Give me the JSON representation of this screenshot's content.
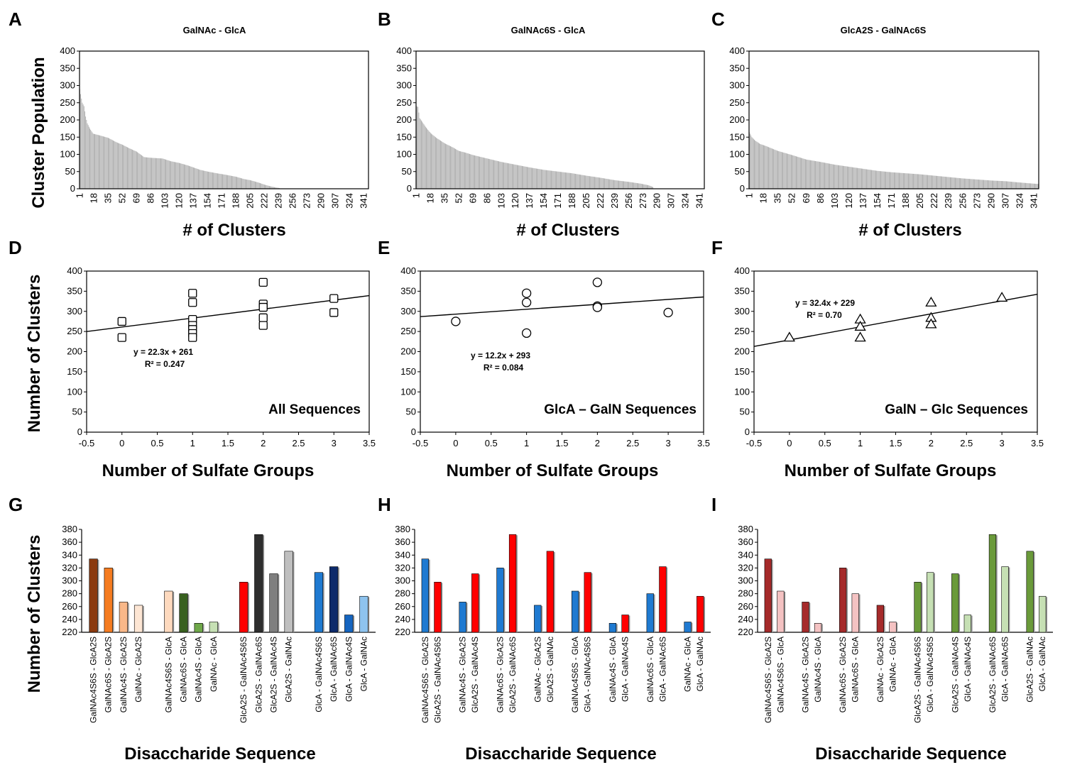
{
  "chart_data": [
    {
      "id": "A",
      "type": "bar",
      "panel_label": "A",
      "title": "GalNAc - GlcA",
      "xlabel": "# of Clusters",
      "ylabel": "Cluster Population",
      "ylim": [
        0,
        400
      ],
      "yticks": [
        0,
        50,
        100,
        150,
        200,
        250,
        300,
        350,
        400
      ],
      "n_clusters": 240,
      "xtick_labels": [
        "1",
        "18",
        "35",
        "52",
        "69",
        "86",
        "103",
        "120",
        "137",
        "154",
        "171",
        "188",
        "205",
        "222",
        "239",
        "256",
        "273",
        "290",
        "307",
        "324",
        "341"
      ],
      "profile": [
        [
          1,
          290
        ],
        [
          2,
          275
        ],
        [
          3,
          262
        ],
        [
          4,
          250
        ],
        [
          6,
          240
        ],
        [
          8,
          210
        ],
        [
          10,
          190
        ],
        [
          13,
          175
        ],
        [
          17,
          160
        ],
        [
          25,
          155
        ],
        [
          35,
          148
        ],
        [
          45,
          135
        ],
        [
          52,
          128
        ],
        [
          60,
          118
        ],
        [
          69,
          108
        ],
        [
          78,
          92
        ],
        [
          86,
          90
        ],
        [
          100,
          88
        ],
        [
          110,
          80
        ],
        [
          120,
          75
        ],
        [
          130,
          68
        ],
        [
          137,
          62
        ],
        [
          145,
          55
        ],
        [
          154,
          50
        ],
        [
          165,
          45
        ],
        [
          175,
          41
        ],
        [
          188,
          35
        ],
        [
          198,
          28
        ],
        [
          205,
          25
        ],
        [
          215,
          18
        ],
        [
          222,
          12
        ],
        [
          228,
          8
        ],
        [
          235,
          4
        ],
        [
          240,
          2
        ]
      ]
    },
    {
      "id": "B",
      "type": "bar",
      "panel_label": "B",
      "title": "GalNAc6S - GlcA",
      "xlabel": "# of Clusters",
      "ylabel": "",
      "ylim": [
        0,
        400
      ],
      "yticks": [
        0,
        50,
        100,
        150,
        200,
        250,
        300,
        350,
        400
      ],
      "n_clusters": 285,
      "xtick_labels": [
        "1",
        "18",
        "35",
        "52",
        "69",
        "86",
        "103",
        "120",
        "137",
        "154",
        "171",
        "188",
        "205",
        "222",
        "239",
        "256",
        "273",
        "290",
        "307",
        "324",
        "341"
      ],
      "profile": [
        [
          1,
          240
        ],
        [
          3,
          238
        ],
        [
          5,
          205
        ],
        [
          8,
          195
        ],
        [
          12,
          180
        ],
        [
          18,
          162
        ],
        [
          25,
          148
        ],
        [
          35,
          132
        ],
        [
          45,
          120
        ],
        [
          52,
          110
        ],
        [
          60,
          105
        ],
        [
          69,
          98
        ],
        [
          86,
          88
        ],
        [
          103,
          78
        ],
        [
          120,
          70
        ],
        [
          137,
          62
        ],
        [
          154,
          55
        ],
        [
          171,
          50
        ],
        [
          188,
          45
        ],
        [
          205,
          38
        ],
        [
          222,
          32
        ],
        [
          239,
          25
        ],
        [
          256,
          20
        ],
        [
          270,
          15
        ],
        [
          280,
          10
        ],
        [
          285,
          5
        ]
      ]
    },
    {
      "id": "C",
      "type": "bar",
      "panel_label": "C",
      "title": "GlcA2S - GalNAc6S",
      "xlabel": "# of Clusters",
      "ylabel": "",
      "ylim": [
        0,
        400
      ],
      "yticks": [
        0,
        50,
        100,
        150,
        200,
        250,
        300,
        350,
        400
      ],
      "n_clusters": 346,
      "xtick_labels": [
        "1",
        "18",
        "35",
        "52",
        "69",
        "86",
        "103",
        "120",
        "137",
        "154",
        "171",
        "188",
        "205",
        "222",
        "239",
        "256",
        "273",
        "290",
        "307",
        "324",
        "341"
      ],
      "profile": [
        [
          1,
          165
        ],
        [
          4,
          150
        ],
        [
          8,
          140
        ],
        [
          14,
          130
        ],
        [
          20,
          125
        ],
        [
          35,
          110
        ],
        [
          52,
          98
        ],
        [
          69,
          85
        ],
        [
          86,
          78
        ],
        [
          103,
          70
        ],
        [
          120,
          64
        ],
        [
          137,
          58
        ],
        [
          154,
          52
        ],
        [
          171,
          48
        ],
        [
          188,
          45
        ],
        [
          205,
          42
        ],
        [
          222,
          38
        ],
        [
          239,
          34
        ],
        [
          256,
          30
        ],
        [
          273,
          27
        ],
        [
          290,
          24
        ],
        [
          307,
          22
        ],
        [
          320,
          19
        ],
        [
          330,
          17
        ],
        [
          340,
          15
        ],
        [
          346,
          14
        ]
      ]
    },
    {
      "id": "D",
      "type": "scatter",
      "panel_label": "D",
      "xlabel": "Number of Sulfate Groups",
      "ylabel": "Number of Clusters",
      "xlim": [
        -0.5,
        3.5
      ],
      "ylim": [
        0,
        400
      ],
      "xticks": [
        "-0.5",
        "0",
        "0.5",
        "1",
        "1.5",
        "2",
        "2.5",
        "3",
        "3.5"
      ],
      "yticks": [
        0,
        50,
        100,
        150,
        200,
        250,
        300,
        350,
        400
      ],
      "marker": "square",
      "points": [
        [
          0,
          275
        ],
        [
          0,
          235
        ],
        [
          1,
          345
        ],
        [
          1,
          322
        ],
        [
          1,
          280
        ],
        [
          1,
          265
        ],
        [
          1,
          255
        ],
        [
          1,
          245
        ],
        [
          1,
          235
        ],
        [
          2,
          372
        ],
        [
          2,
          318
        ],
        [
          2,
          310
        ],
        [
          2,
          284
        ],
        [
          2,
          265
        ],
        [
          3,
          332
        ],
        [
          3,
          297
        ]
      ],
      "fit": {
        "slope": 22.3,
        "intercept": 261
      },
      "equation": "y = 22.3x + 261",
      "r2": "R² = 0.247",
      "annotation": "All Sequences"
    },
    {
      "id": "E",
      "type": "scatter",
      "panel_label": "E",
      "xlabel": "Number of Sulfate Groups",
      "ylabel": "",
      "xlim": [
        -0.5,
        3.5
      ],
      "ylim": [
        0,
        400
      ],
      "xticks": [
        "-0.5",
        "0",
        "0.5",
        "1",
        "1.5",
        "2",
        "2.5",
        "3",
        "3.5"
      ],
      "yticks": [
        0,
        50,
        100,
        150,
        200,
        250,
        300,
        350,
        400
      ],
      "marker": "circle",
      "points": [
        [
          0,
          275
        ],
        [
          1,
          345
        ],
        [
          1,
          322
        ],
        [
          1,
          246
        ],
        [
          2,
          372
        ],
        [
          2,
          313
        ],
        [
          2,
          310
        ],
        [
          3,
          297
        ]
      ],
      "fit": {
        "slope": 12.2,
        "intercept": 293
      },
      "equation": "y = 12.2x + 293",
      "r2": "R² = 0.084",
      "annotation": "GlcA – GalN Sequences"
    },
    {
      "id": "F",
      "type": "scatter",
      "panel_label": "F",
      "xlabel": "Number of Sulfate Groups",
      "ylabel": "",
      "xlim": [
        -0.5,
        3.5
      ],
      "ylim": [
        0,
        400
      ],
      "xticks": [
        "-0.5",
        "0",
        "0.5",
        "1",
        "1.5",
        "2",
        "2.5",
        "3",
        "3.5"
      ],
      "yticks": [
        0,
        50,
        100,
        150,
        200,
        250,
        300,
        350,
        400
      ],
      "marker": "triangle",
      "points": [
        [
          0,
          235
        ],
        [
          1,
          280
        ],
        [
          1,
          262
        ],
        [
          1,
          235
        ],
        [
          2,
          322
        ],
        [
          2,
          284
        ],
        [
          2,
          268
        ],
        [
          3,
          334
        ]
      ],
      "fit": {
        "slope": 32.4,
        "intercept": 229
      },
      "equation": "y = 32.4x + 229",
      "r2": "R² = 0.70",
      "annotation": "GalN – Glc Sequences"
    },
    {
      "id": "G",
      "type": "bar",
      "panel_label": "G",
      "xlabel": "Disaccharide Sequence",
      "ylabel": "Number of Clusters",
      "ylim": [
        220,
        380
      ],
      "yticks": [
        220,
        240,
        260,
        280,
        300,
        320,
        340,
        360,
        380
      ],
      "bars": [
        {
          "label": "GalNAc4S6S - GlcA2S",
          "value": 334,
          "color": "#8B3A0F",
          "slot": 0
        },
        {
          "label": "GalNAc6S - GlcA2S",
          "value": 320,
          "color": "#F57C20",
          "slot": 1
        },
        {
          "label": "GalNAc4S - GlcA2S",
          "value": 267,
          "color": "#F9B889",
          "slot": 2
        },
        {
          "label": "GalNAc - GlcA2S",
          "value": 262,
          "color": "#FDE6D4",
          "slot": 3
        },
        {
          "label": "GalNAc4S6S - GlcA",
          "value": 284,
          "color": "#FDD9BE",
          "slot": 5
        },
        {
          "label": "GalNAc6S - GlcA",
          "value": 280,
          "color": "#38601F",
          "slot": 6
        },
        {
          "label": "GalNAc4S - GlcA",
          "value": 234,
          "color": "#6FA84A",
          "slot": 7
        },
        {
          "label": "GalNAc - GlcA",
          "value": 236,
          "color": "#C6E0B4",
          "slot": 8
        },
        {
          "label": "GlcA2S - GalNAc4S6S",
          "value": 298,
          "color": "#FF0000",
          "slot": 10
        },
        {
          "label": "GlcA2S - GalNAc6S",
          "value": 372,
          "color": "#2E2E2E",
          "slot": 11
        },
        {
          "label": "GlcA2S - GalNAc4S",
          "value": 311,
          "color": "#7F7F7F",
          "slot": 12
        },
        {
          "label": "GlcA2S - GalNAc",
          "value": 346,
          "color": "#BFBFBF",
          "slot": 13
        },
        {
          "label": "GlcA - GalNAc4S6S",
          "value": 313,
          "color": "#1F7AD1",
          "slot": 15
        },
        {
          "label": "GlcA - GalNAc6S",
          "value": 322,
          "color": "#0D2A6B",
          "slot": 16
        },
        {
          "label": "GlcA - GalNAc4S",
          "value": 247,
          "color": "#1565C0",
          "slot": 17
        },
        {
          "label": "GlcA - GalNAc",
          "value": 276,
          "color": "#8EC3EE",
          "slot": 18
        }
      ]
    },
    {
      "id": "H",
      "type": "bar",
      "panel_label": "H",
      "xlabel": "Disaccharide Sequence",
      "ylabel": "",
      "ylim": [
        220,
        380
      ],
      "yticks": [
        220,
        240,
        260,
        280,
        300,
        320,
        340,
        360,
        380
      ],
      "bars": [
        {
          "label": "GalNAc4S6S - GlcA2S",
          "value": 334,
          "color": "#1F7AD1",
          "slot": 0
        },
        {
          "label": "GlcA2S - GalNAc4S6S",
          "value": 298,
          "color": "#FF0000",
          "slot": 1
        },
        {
          "label": "GalNAc4S - GlcA2S",
          "value": 267,
          "color": "#1F7AD1",
          "slot": 3
        },
        {
          "label": "GlcA2S - GalNAc4S",
          "value": 311,
          "color": "#FF0000",
          "slot": 4
        },
        {
          "label": "GalNAc6S - GlcA2S",
          "value": 320,
          "color": "#1F7AD1",
          "slot": 6
        },
        {
          "label": "GlcA2S - GalNAc6S",
          "value": 372,
          "color": "#FF0000",
          "slot": 7
        },
        {
          "label": "GalNAc - GlcA2S",
          "value": 262,
          "color": "#1F7AD1",
          "slot": 9
        },
        {
          "label": "GlcA2S - GalNAc",
          "value": 346,
          "color": "#FF0000",
          "slot": 10
        },
        {
          "label": "GalNAc4S6S - GlcA",
          "value": 284,
          "color": "#1F7AD1",
          "slot": 12
        },
        {
          "label": "GlcA - GalNAc4S6S",
          "value": 313,
          "color": "#FF0000",
          "slot": 13
        },
        {
          "label": "GalNAc4S - GlcA",
          "value": 234,
          "color": "#1F7AD1",
          "slot": 15
        },
        {
          "label": "GlcA - GalNAc4S",
          "value": 247,
          "color": "#FF0000",
          "slot": 16
        },
        {
          "label": "GalNAc6S - GlcA",
          "value": 280,
          "color": "#1F7AD1",
          "slot": 18
        },
        {
          "label": "GlcA - GalNAc6S",
          "value": 322,
          "color": "#FF0000",
          "slot": 19
        },
        {
          "label": "GalNAc - GlcA",
          "value": 236,
          "color": "#1F7AD1",
          "slot": 21
        },
        {
          "label": "GlcA - GalNAc",
          "value": 276,
          "color": "#FF0000",
          "slot": 22
        }
      ]
    },
    {
      "id": "I",
      "type": "bar",
      "panel_label": "I",
      "xlabel": "Disaccharide Sequence",
      "ylabel": "",
      "ylim": [
        220,
        380
      ],
      "yticks": [
        220,
        240,
        260,
        280,
        300,
        320,
        340,
        360,
        380
      ],
      "bars": [
        {
          "label": "GalNAc4S6S - GlcA2S",
          "value": 334,
          "color": "#A52A2A",
          "slot": 0
        },
        {
          "label": "GalNAc4S6S - GlcA",
          "value": 284,
          "color": "#F4C2C2",
          "slot": 1
        },
        {
          "label": "GalNAc4S - GlcA2S",
          "value": 267,
          "color": "#A52A2A",
          "slot": 3
        },
        {
          "label": "GalNAc4S - GlcA",
          "value": 234,
          "color": "#F4C2C2",
          "slot": 4
        },
        {
          "label": "GalNAc6S - GlcA2S",
          "value": 320,
          "color": "#A52A2A",
          "slot": 6
        },
        {
          "label": "GalNAc6S - GlcA",
          "value": 280,
          "color": "#F4C2C2",
          "slot": 7
        },
        {
          "label": "GalNAc - GlcA2S",
          "value": 262,
          "color": "#A52A2A",
          "slot": 9
        },
        {
          "label": "GalNAc - GlcA",
          "value": 236,
          "color": "#F4C2C2",
          "slot": 10
        },
        {
          "label": "GlcA2S - GalNAc4S6S",
          "value": 298,
          "color": "#6A9A3A",
          "slot": 12
        },
        {
          "label": "GlcA - GalNAc4S6S",
          "value": 313,
          "color": "#C6E0B4",
          "slot": 13
        },
        {
          "label": "GlcA2S - GalNAc4S",
          "value": 311,
          "color": "#6A9A3A",
          "slot": 15
        },
        {
          "label": "GlcA - GalNAc4S",
          "value": 247,
          "color": "#C6E0B4",
          "slot": 16
        },
        {
          "label": "GlcA2S - GalNAc6S",
          "value": 372,
          "color": "#6A9A3A",
          "slot": 18
        },
        {
          "label": "GlcA - GalNAc6S",
          "value": 322,
          "color": "#C6E0B4",
          "slot": 19
        },
        {
          "label": "GlcA2S - GalNAc",
          "value": 346,
          "color": "#6A9A3A",
          "slot": 21
        },
        {
          "label": "GlcA - GalNAc",
          "value": 276,
          "color": "#C6E0B4",
          "slot": 22
        }
      ]
    }
  ]
}
